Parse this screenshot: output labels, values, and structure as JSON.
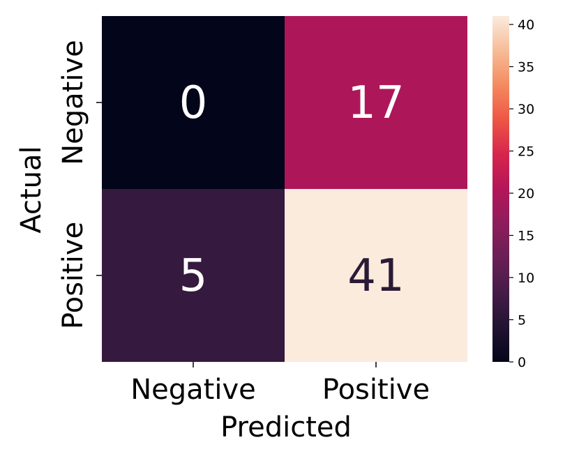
{
  "chart_data": {
    "type": "heatmap",
    "title": "",
    "xlabel": "Predicted",
    "ylabel": "Actual",
    "x_categories": [
      "Negative",
      "Positive"
    ],
    "y_categories": [
      "Negative",
      "Positive"
    ],
    "matrix": [
      [
        0,
        17
      ],
      [
        5,
        41
      ]
    ],
    "value_labels": [
      "0",
      "17",
      "5",
      "41"
    ],
    "colormap": "rocket",
    "colorbar": {
      "range": [
        0,
        41
      ],
      "ticks": [
        0,
        5,
        10,
        15,
        20,
        25,
        30,
        35,
        40
      ],
      "tick_labels": [
        "0",
        "5",
        "10",
        "15",
        "20",
        "25",
        "30",
        "35",
        "40"
      ]
    },
    "colors": {
      "0": "#03051a",
      "5": "#35193e",
      "17": "#ad1759",
      "41": "#faebdd",
      "light_text": "#ffffff",
      "dark_text": "#2b1a36"
    }
  }
}
